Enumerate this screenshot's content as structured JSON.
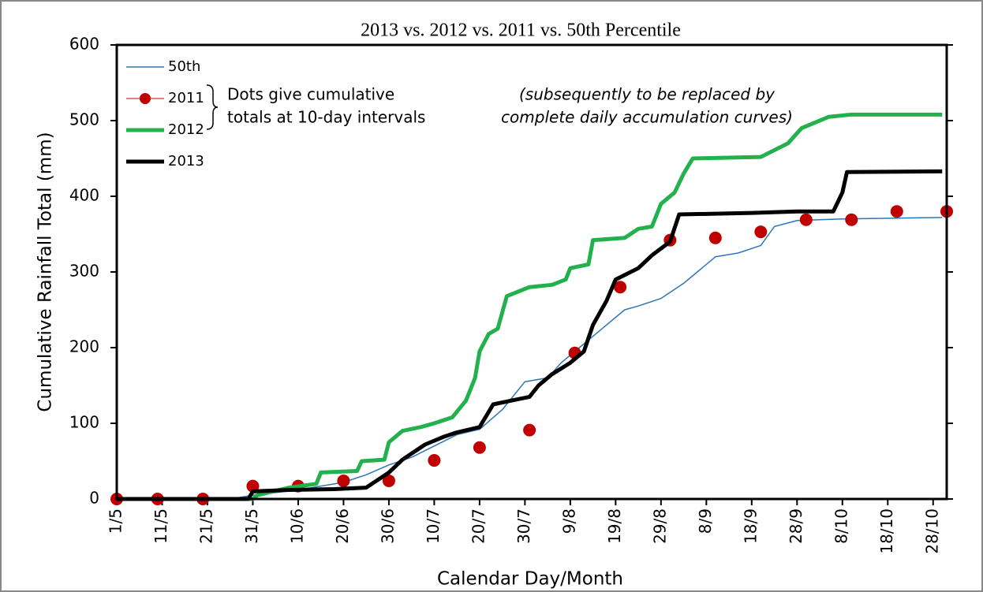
{
  "chart_data": {
    "type": "line",
    "title": "2013 vs. 2012 vs. 2011 vs. 50th Percentile",
    "xlabel": "Calendar Day/Month",
    "ylabel": "Cumulative Rainfall Total (mm)",
    "annotations": [
      [
        "Dots give cumulative",
        "totals at 10-day intervals"
      ],
      [
        "(subsequently to be replaced by",
        "complete daily accumulation curves)"
      ]
    ],
    "xlim": [
      0,
      183
    ],
    "ylim": [
      0,
      600
    ],
    "yticks": [
      0,
      100,
      200,
      300,
      400,
      500,
      600
    ],
    "xticks": [
      {
        "value": 0,
        "label": "1/5"
      },
      {
        "value": 10,
        "label": "11/5"
      },
      {
        "value": 20,
        "label": "21/5"
      },
      {
        "value": 30,
        "label": "31/5"
      },
      {
        "value": 40,
        "label": "10/6"
      },
      {
        "value": 50,
        "label": "20/6"
      },
      {
        "value": 60,
        "label": "30/6"
      },
      {
        "value": 70,
        "label": "10/7"
      },
      {
        "value": 80,
        "label": "20/7"
      },
      {
        "value": 90,
        "label": "30/7"
      },
      {
        "value": 100,
        "label": "9/8"
      },
      {
        "value": 110,
        "label": "19/8"
      },
      {
        "value": 120,
        "label": "29/8"
      },
      {
        "value": 130,
        "label": "8/9"
      },
      {
        "value": 140,
        "label": "18/9"
      },
      {
        "value": 150,
        "label": "28/9"
      },
      {
        "value": 160,
        "label": "8/10"
      },
      {
        "value": 170,
        "label": "18/10"
      },
      {
        "value": 180,
        "label": "28/10"
      }
    ],
    "series": [
      {
        "name": "50th",
        "color": "#2e75b6",
        "width": 1.5,
        "marker": false,
        "x": [
          0,
          25,
          30,
          40,
          50,
          55,
          60,
          65,
          70,
          75,
          80,
          85,
          90,
          95,
          98,
          102,
          105,
          108,
          112,
          115,
          120,
          125,
          128,
          132,
          137,
          142,
          145,
          150,
          160,
          182
        ],
        "values": [
          0,
          0,
          5,
          12,
          22,
          32,
          45,
          55,
          70,
          85,
          92,
          118,
          155,
          160,
          180,
          200,
          215,
          230,
          250,
          255,
          265,
          285,
          300,
          320,
          325,
          335,
          360,
          368,
          370,
          372
        ]
      },
      {
        "name": "2011",
        "color": "#c00000",
        "width": 1,
        "marker": true,
        "x": [
          0,
          9,
          19,
          30,
          40,
          50,
          60,
          70,
          80,
          91,
          101,
          111,
          122,
          132,
          142,
          152,
          162,
          172,
          183
        ],
        "values": [
          0,
          0,
          0,
          17,
          17,
          24,
          24,
          51,
          68,
          91,
          193,
          280,
          342,
          345,
          353,
          369,
          369,
          380,
          380
        ]
      },
      {
        "name": "2012",
        "color": "#22b14c",
        "width": 5,
        "marker": false,
        "x": [
          0,
          30,
          31,
          38,
          44,
          45,
          53,
          54,
          59,
          60,
          63,
          67,
          70,
          74,
          77,
          79,
          80,
          82,
          84,
          86,
          91,
          96,
          99,
          100,
          104,
          105,
          112,
          115,
          118,
          120,
          123,
          125,
          127,
          142,
          148,
          151,
          157,
          162,
          182
        ],
        "values": [
          0,
          0,
          5,
          15,
          20,
          35,
          37,
          50,
          52,
          75,
          90,
          95,
          100,
          108,
          130,
          160,
          195,
          218,
          225,
          268,
          280,
          283,
          290,
          305,
          310,
          342,
          345,
          357,
          360,
          390,
          405,
          430,
          450,
          452,
          470,
          490,
          505,
          508,
          508
        ]
      },
      {
        "name": "2013",
        "color": "#000000",
        "width": 5,
        "marker": false,
        "x": [
          0,
          29,
          30,
          38,
          48,
          55,
          60,
          63,
          68,
          72,
          75,
          80,
          83,
          91,
          93,
          96,
          100,
          103,
          105,
          108,
          110,
          115,
          118,
          122,
          124,
          140,
          150,
          158,
          160,
          161,
          182
        ],
        "values": [
          0,
          0,
          10,
          12,
          13,
          15,
          35,
          52,
          72,
          82,
          88,
          95,
          125,
          135,
          150,
          165,
          180,
          195,
          230,
          262,
          290,
          305,
          322,
          340,
          376,
          378,
          380,
          380,
          405,
          432,
          433
        ]
      }
    ]
  }
}
